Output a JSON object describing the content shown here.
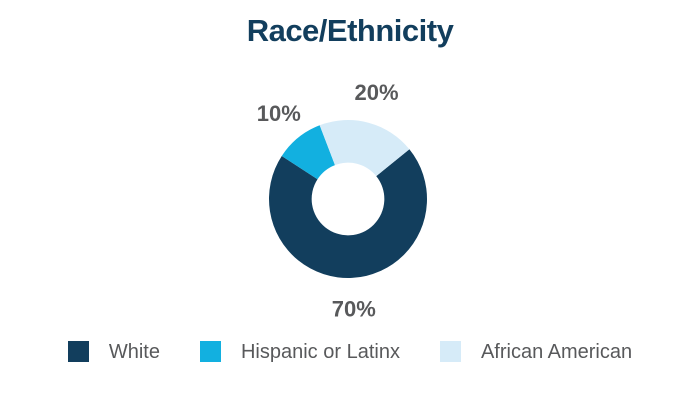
{
  "title": "Race/Ethnicity",
  "chart_data": {
    "type": "pie",
    "subtype": "donut",
    "title": "Race/Ethnicity",
    "labels": [
      "White",
      "Hispanic or Latinx",
      "African American"
    ],
    "values": [
      70,
      10,
      20
    ],
    "colors": [
      "#123E5D",
      "#12B0E0",
      "#D6EBF8"
    ],
    "data_labels": [
      "70%",
      "10%",
      "20%"
    ],
    "start_angle_deg_clockwise_from_top": 51,
    "inner_radius_ratio": 0.46,
    "legend_position": "bottom",
    "grid": false,
    "title_color": "#123E5D",
    "data_label_color": "#58595B"
  },
  "legend": {
    "text_color": "#58595B",
    "items": [
      {
        "label": "White",
        "color": "#123E5D"
      },
      {
        "label": "Hispanic or Latinx",
        "color": "#12B0E0"
      },
      {
        "label": "African American",
        "color": "#D6EBF8"
      }
    ]
  }
}
